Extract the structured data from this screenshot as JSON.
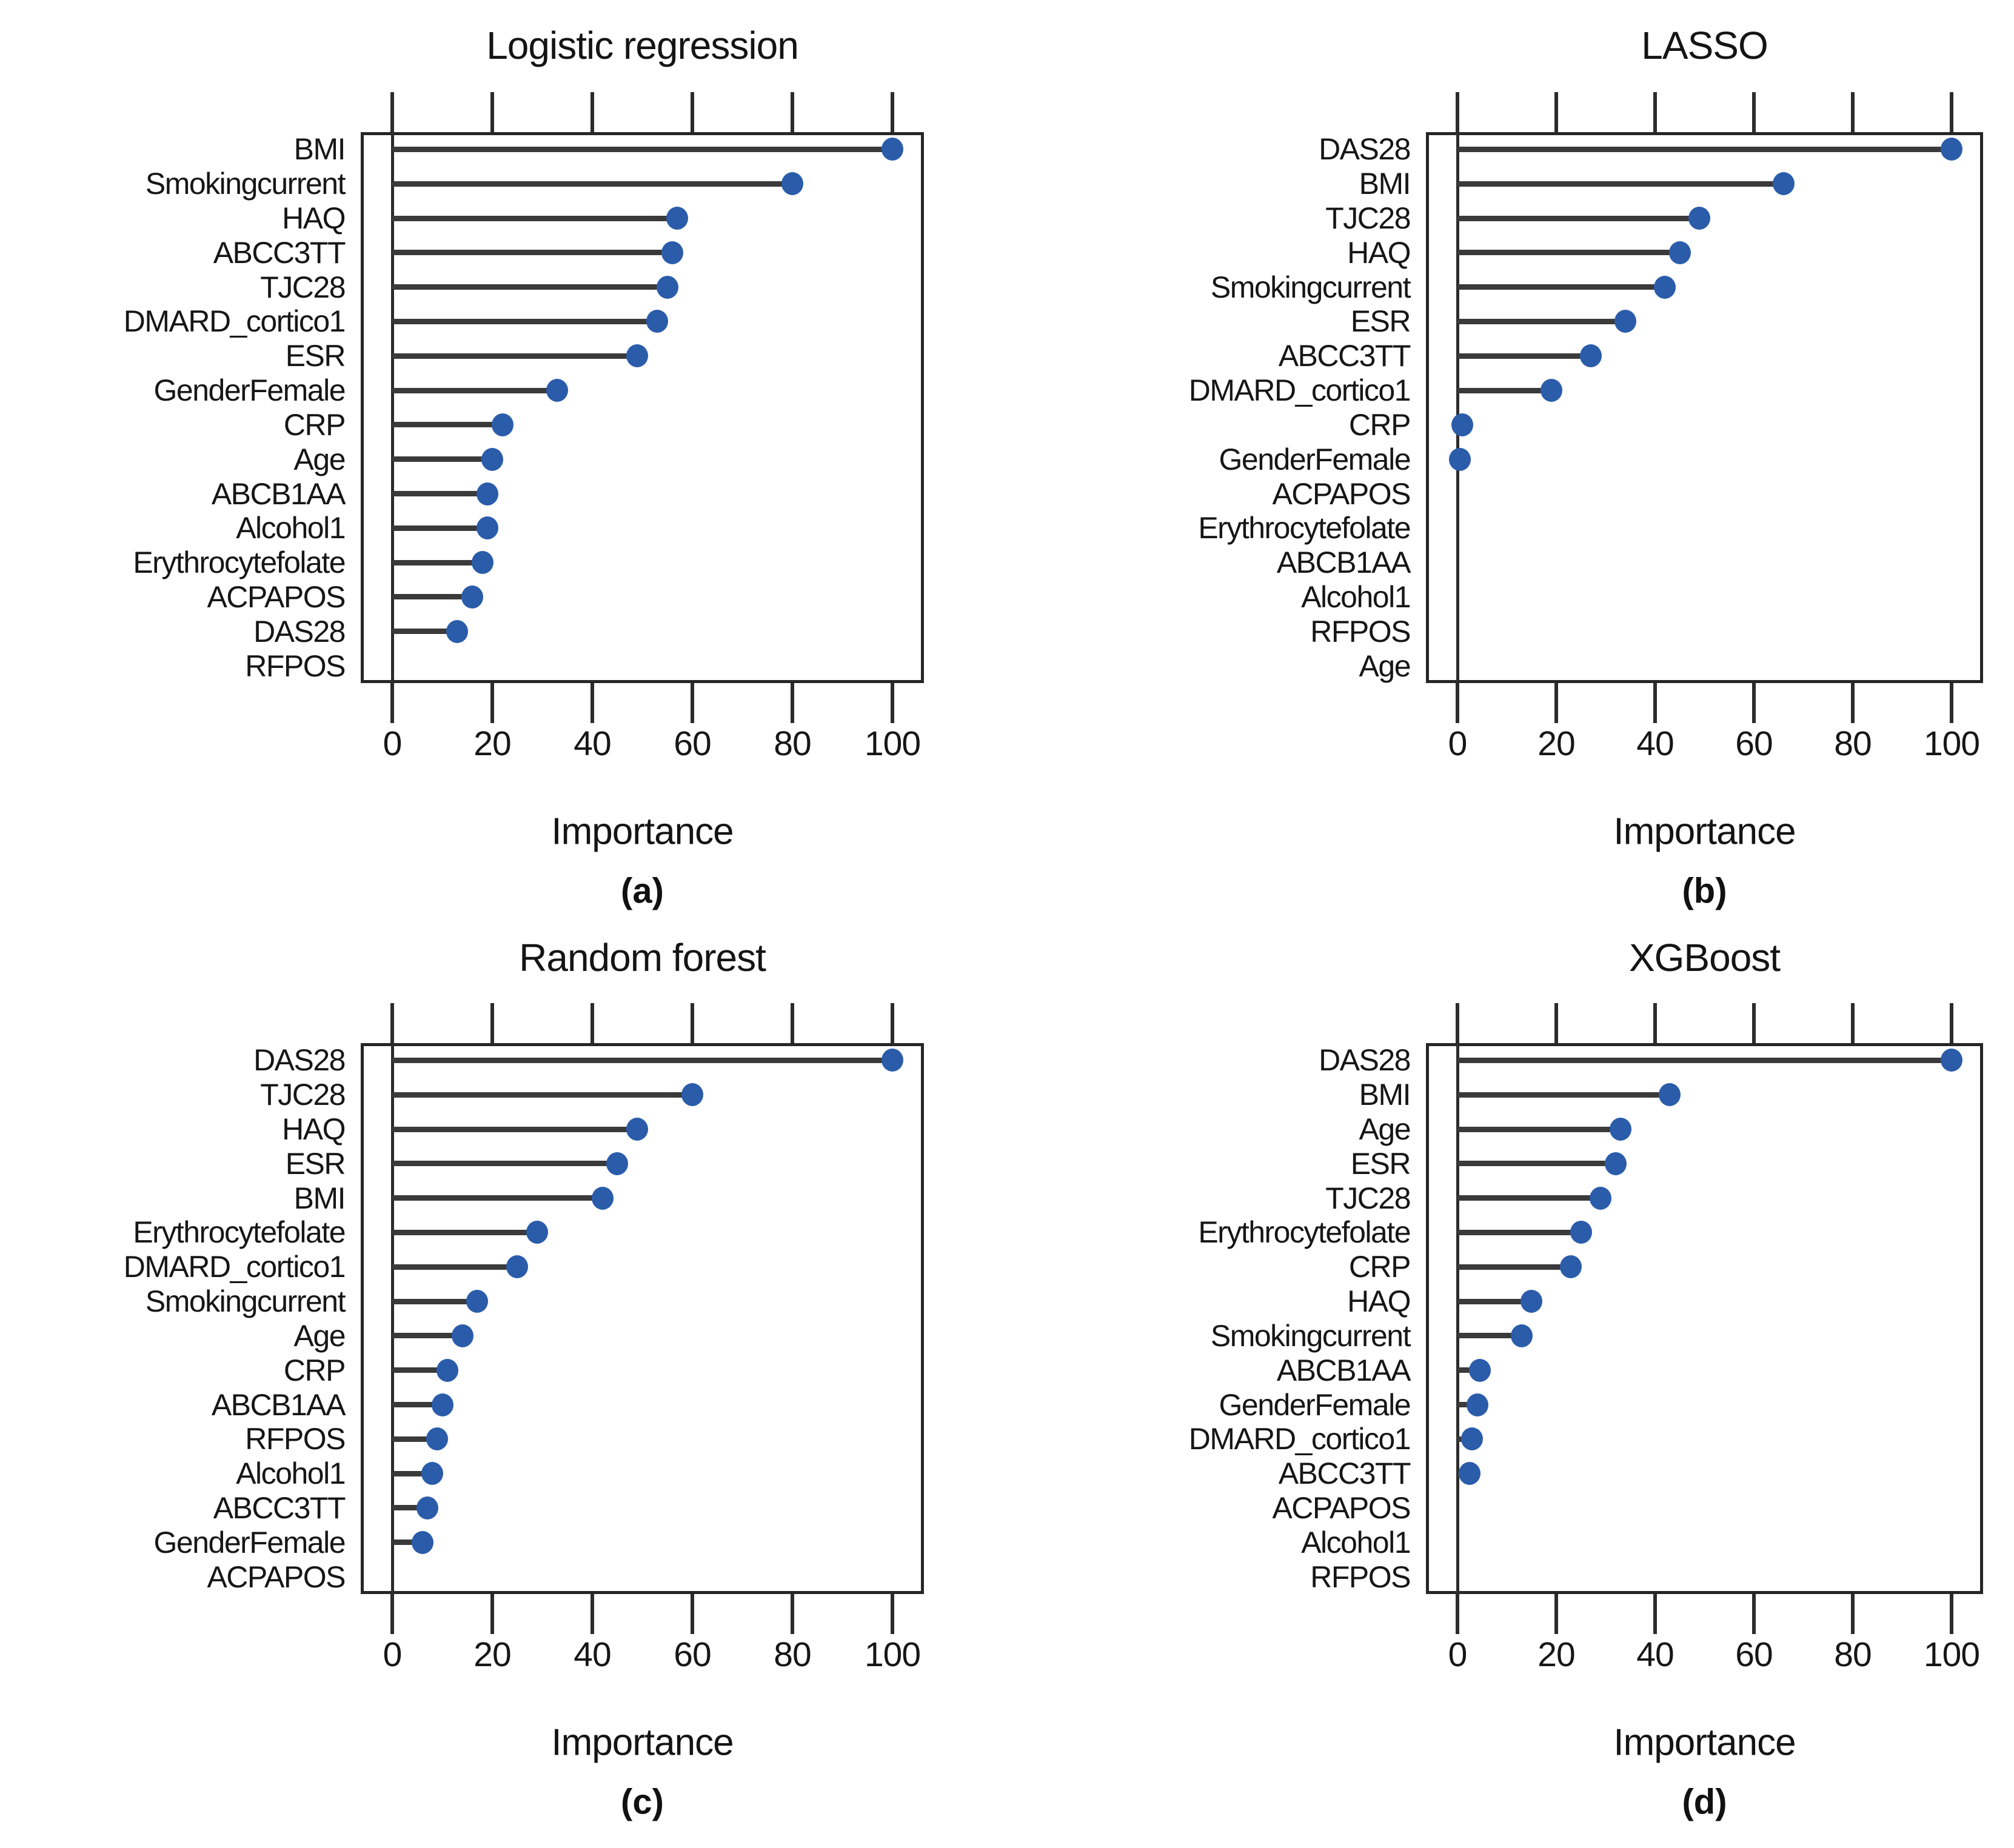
{
  "figure": {
    "background": "#ffffff",
    "dot_color": "#2a5caa",
    "stem_color": "#3a3a3a",
    "axis_color": "#262626",
    "x_axis_label": "Importance"
  },
  "chart_data": [
    {
      "type": "bar",
      "style": "lollipop-dot-horizontal",
      "panel_caption": "(a)",
      "title": "Logistic regression",
      "xlabel": "Importance",
      "xlim": [
        -6,
        107
      ],
      "x_ticks": [
        0,
        20,
        40,
        60,
        80,
        100
      ],
      "grid": false,
      "categories": [
        "BMI",
        "Smokingcurrent",
        "HAQ",
        "ABCC3TT",
        "TJC28",
        "DMARD_cortico1",
        "ESR",
        "GenderFemale",
        "CRP",
        "Age",
        "ABCB1AA",
        "Alcohol1",
        "Erythrocytefolate",
        "ACPAPOS",
        "DAS28",
        "RFPOS"
      ],
      "values": [
        100,
        80,
        57,
        56,
        55,
        53,
        49,
        33,
        22,
        20,
        19,
        19,
        18,
        16,
        13,
        null
      ]
    },
    {
      "type": "bar",
      "style": "lollipop-dot-horizontal",
      "panel_caption": "(b)",
      "title": "LASSO",
      "xlabel": "Importance",
      "xlim": [
        -6,
        107
      ],
      "x_ticks": [
        0,
        20,
        40,
        60,
        80,
        100
      ],
      "grid": false,
      "categories": [
        "DAS28",
        "BMI",
        "TJC28",
        "HAQ",
        "Smokingcurrent",
        "ESR",
        "ABCC3TT",
        "DMARD_cortico1",
        "CRP",
        "GenderFemale",
        "ACPAPOS",
        "Erythrocytefolate",
        "ABCB1AA",
        "Alcohol1",
        "RFPOS",
        "Age"
      ],
      "values": [
        100,
        66,
        49,
        45,
        42,
        34,
        27,
        19,
        1,
        0.5,
        null,
        null,
        null,
        null,
        null,
        null
      ]
    },
    {
      "type": "bar",
      "style": "lollipop-dot-horizontal",
      "panel_caption": "(c)",
      "title": "Random forest",
      "xlabel": "Importance",
      "xlim": [
        -6,
        107
      ],
      "x_ticks": [
        0,
        20,
        40,
        60,
        80,
        100
      ],
      "grid": false,
      "categories": [
        "DAS28",
        "TJC28",
        "HAQ",
        "ESR",
        "BMI",
        "Erythrocytefolate",
        "DMARD_cortico1",
        "Smokingcurrent",
        "Age",
        "CRP",
        "ABCB1AA",
        "RFPOS",
        "Alcohol1",
        "ABCC3TT",
        "GenderFemale",
        "ACPAPOS"
      ],
      "values": [
        100,
        60,
        49,
        45,
        42,
        29,
        25,
        17,
        14,
        11,
        10,
        9,
        8,
        7,
        6,
        null
      ]
    },
    {
      "type": "bar",
      "style": "lollipop-dot-horizontal",
      "panel_caption": "(d)",
      "title": "XGBoost",
      "xlabel": "Importance",
      "xlim": [
        -6,
        107
      ],
      "x_ticks": [
        0,
        20,
        40,
        60,
        80,
        100
      ],
      "grid": false,
      "categories": [
        "DAS28",
        "BMI",
        "Age",
        "ESR",
        "TJC28",
        "Erythrocytefolate",
        "CRP",
        "HAQ",
        "Smokingcurrent",
        "ABCB1AA",
        "GenderFemale",
        "DMARD_cortico1",
        "ABCC3TT",
        "ACPAPOS",
        "Alcohol1",
        "RFPOS"
      ],
      "values": [
        100,
        43,
        33,
        32,
        29,
        25,
        23,
        15,
        13,
        4.5,
        4,
        3,
        2.5,
        null,
        null,
        null
      ]
    }
  ]
}
